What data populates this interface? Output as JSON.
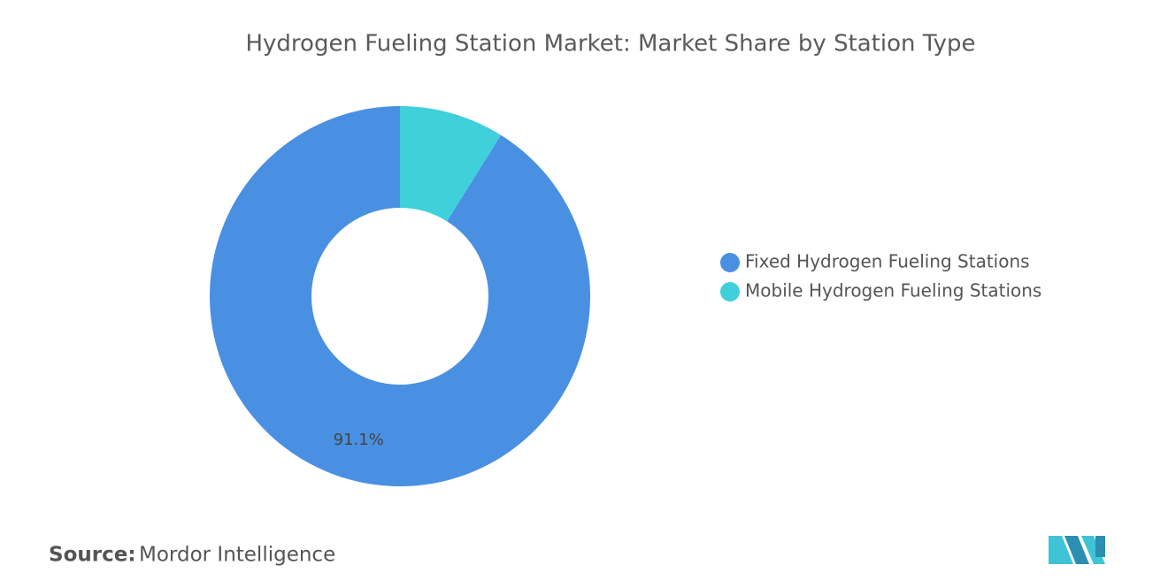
{
  "chart_data": {
    "type": "donut",
    "title": "Hydrogen Fueling Station Market: Market Share by Station Type",
    "categories": [
      "Fixed Hydrogen Fueling Stations",
      "Mobile Hydrogen Fueling Stations"
    ],
    "values": [
      91.1,
      8.9
    ],
    "value_labels": [
      "91.1%",
      null
    ],
    "colors": [
      "#4a90e2",
      "#3fd0db"
    ],
    "legend": "right",
    "source_label": "Source:",
    "source": "Mordor Intelligence"
  }
}
